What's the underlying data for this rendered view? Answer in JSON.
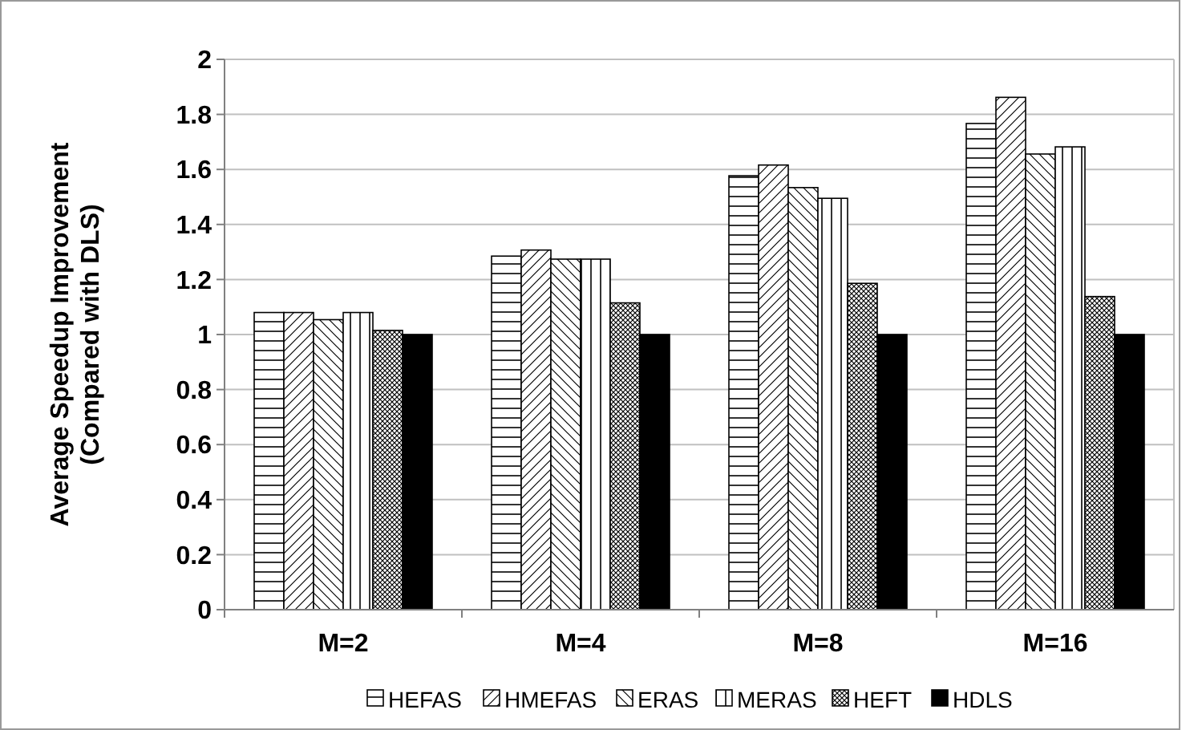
{
  "chart_data": {
    "type": "bar",
    "ylabel": "Average Speedup Improvement\n(Compared with DLS)",
    "categories": [
      "M=2",
      "M=4",
      "M=8",
      "M=16"
    ],
    "series": [
      {
        "name": "HEFAS",
        "color": "#000000",
        "values": [
          1.08,
          1.285,
          1.577,
          1.767
        ]
      },
      {
        "name": "HMEFAS",
        "color": "#000000",
        "values": [
          1.08,
          1.307,
          1.616,
          1.862
        ]
      },
      {
        "name": "ERAS",
        "color": "#000000",
        "values": [
          1.054,
          1.274,
          1.534,
          1.656
        ]
      },
      {
        "name": "MERAS",
        "color": "#000000",
        "values": [
          1.08,
          1.274,
          1.495,
          1.682
        ]
      },
      {
        "name": "HEFT",
        "color": "#000000",
        "values": [
          1.015,
          1.115,
          1.186,
          1.138
        ]
      },
      {
        "name": "HDLS",
        "color": "#000000",
        "values": [
          1.0,
          1.0,
          1.0,
          1.0
        ]
      }
    ],
    "ylim": [
      0,
      2
    ],
    "yticks": [
      0,
      0.2,
      0.4,
      0.6,
      0.8,
      1,
      1.2,
      1.4,
      1.6,
      1.8,
      2
    ],
    "grid": "y",
    "legend": "bottom"
  }
}
